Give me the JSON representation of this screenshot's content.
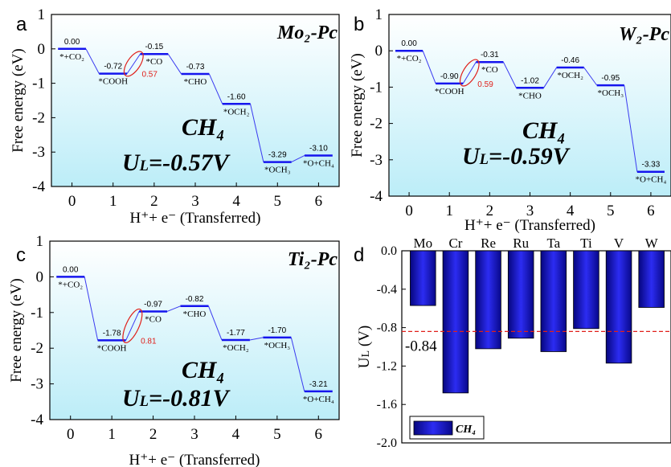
{
  "chart_data": [
    {
      "panel": "a",
      "type": "line",
      "title": "Mo₂-Pc",
      "product": "CH₄",
      "ul_label": "U",
      "ul_sub": "L",
      "ul_value": "=-0.57V",
      "xlabel": "H⁺+ e⁻ (Transferred)",
      "ylabel": "Free energy (eV)",
      "xticks": [
        "0",
        "1",
        "2",
        "3",
        "4",
        "5",
        "6"
      ],
      "yticks": [
        "1",
        "0",
        "-1",
        "-2",
        "-3",
        "-4"
      ],
      "xlim": [
        -0.5,
        6.5
      ],
      "ylim": [
        -4,
        1
      ],
      "steps": [
        {
          "x": 0,
          "y": 0.0,
          "value": "0.00",
          "species": "*+CO₂",
          "valuePos": "above",
          "spPos": "below"
        },
        {
          "x": 1,
          "y": -0.72,
          "value": "-0.72",
          "species": "*COOH",
          "valuePos": "above",
          "spPos": "below"
        },
        {
          "x": 2,
          "y": -0.15,
          "value": "-0.15",
          "species": "*CO",
          "valuePos": "above",
          "spPos": "below"
        },
        {
          "x": 3,
          "y": -0.73,
          "value": "-0.73",
          "species": "*CHO",
          "valuePos": "above",
          "spPos": "below"
        },
        {
          "x": 4,
          "y": -1.6,
          "value": "-1.60",
          "species": "*OCH₂",
          "valuePos": "above",
          "spPos": "below"
        },
        {
          "x": 5,
          "y": -3.29,
          "value": "-3.29",
          "species": "*OCH₃",
          "valuePos": "above",
          "spPos": "below"
        },
        {
          "x": 6,
          "y": -3.1,
          "value": "-3.10",
          "species": "*O+CH₄",
          "valuePos": "above",
          "spPos": "below"
        }
      ],
      "limiting": {
        "from": 1,
        "to": 2,
        "label": "0.57"
      }
    },
    {
      "panel": "b",
      "type": "line",
      "title": "W₂-Pc",
      "product": "CH₄",
      "ul_label": "U",
      "ul_sub": "L",
      "ul_value": "=-0.59V",
      "xlabel": "H⁺+ e⁻ (Transferred)",
      "ylabel": "Free energy (eV)",
      "xticks": [
        "0",
        "1",
        "2",
        "3",
        "4",
        "5",
        "6"
      ],
      "yticks": [
        "1",
        "0",
        "-1",
        "-2",
        "-3",
        "-4"
      ],
      "xlim": [
        -0.5,
        6.5
      ],
      "ylim": [
        -4,
        1
      ],
      "steps": [
        {
          "x": 0,
          "y": 0.0,
          "value": "0.00",
          "species": "*+CO₂",
          "valuePos": "above",
          "spPos": "below"
        },
        {
          "x": 1,
          "y": -0.9,
          "value": "-0.90",
          "species": "*COOH",
          "valuePos": "above",
          "spPos": "below"
        },
        {
          "x": 2,
          "y": -0.31,
          "value": "-0.31",
          "species": "*CO",
          "valuePos": "above",
          "spPos": "below"
        },
        {
          "x": 3,
          "y": -1.02,
          "value": "-1.02",
          "species": "*CHO",
          "valuePos": "above",
          "spPos": "below"
        },
        {
          "x": 4,
          "y": -0.46,
          "value": "-0.46",
          "species": "*OCH₂",
          "valuePos": "above",
          "spPos": "below"
        },
        {
          "x": 5,
          "y": -0.95,
          "value": "-0.95",
          "species": "*OCH₃",
          "valuePos": "above",
          "spPos": "below"
        },
        {
          "x": 6,
          "y": -3.33,
          "value": "-3.33",
          "species": "*O+CH₄",
          "valuePos": "above",
          "spPos": "below"
        }
      ],
      "limiting": {
        "from": 1,
        "to": 2,
        "label": "0.59"
      }
    },
    {
      "panel": "c",
      "type": "line",
      "title": "Ti₂-Pc",
      "product": "CH₄",
      "ul_label": "U",
      "ul_sub": "L",
      "ul_value": "=-0.81V",
      "xlabel": "H⁺+ e⁻ (Transferred)",
      "ylabel": "Free energy (eV)",
      "xticks": [
        "0",
        "1",
        "2",
        "3",
        "4",
        "5",
        "6"
      ],
      "yticks": [
        "1",
        "0",
        "-1",
        "-2",
        "-3",
        "-4"
      ],
      "xlim": [
        -0.5,
        6.5
      ],
      "ylim": [
        -4,
        1
      ],
      "steps": [
        {
          "x": 0,
          "y": 0.0,
          "value": "0.00",
          "species": "*+CO₂",
          "valuePos": "above",
          "spPos": "below"
        },
        {
          "x": 1,
          "y": -1.78,
          "value": "-1.78",
          "species": "*COOH",
          "valuePos": "above",
          "spPos": "below"
        },
        {
          "x": 2,
          "y": -0.97,
          "value": "-0.97",
          "species": "*CO",
          "valuePos": "above",
          "spPos": "below"
        },
        {
          "x": 3,
          "y": -0.82,
          "value": "-0.82",
          "species": "*CHO",
          "valuePos": "above",
          "spPos": "below"
        },
        {
          "x": 4,
          "y": -1.77,
          "value": "-1.77",
          "species": "*OCH₂",
          "valuePos": "above",
          "spPos": "below"
        },
        {
          "x": 5,
          "y": -1.7,
          "value": "-1.70",
          "species": "*OCH₃",
          "valuePos": "above",
          "spPos": "below"
        },
        {
          "x": 6,
          "y": -3.21,
          "value": "-3.21",
          "species": "*O+CH₄",
          "valuePos": "above",
          "spPos": "below"
        }
      ],
      "limiting": {
        "from": 1,
        "to": 2,
        "label": "0.81"
      }
    },
    {
      "panel": "d",
      "type": "bar",
      "categories": [
        "Mo",
        "Cr",
        "Re",
        "Ru",
        "Ta",
        "Ti",
        "V",
        "W"
      ],
      "values": [
        -0.57,
        -1.48,
        -1.02,
        -0.91,
        -1.05,
        -0.81,
        -1.17,
        -0.59
      ],
      "ylabel": "U",
      "ylabel_sub": "L",
      "ylabel_unit": " (V)",
      "ylim": [
        -2.0,
        0.0
      ],
      "yticks": [
        "0.0",
        "-0.4",
        "-0.8",
        "-1.2",
        "-1.6",
        "-2.0"
      ],
      "reference_line": {
        "value": -0.84,
        "label": "-0.84"
      },
      "legend": {
        "label": "CH₄",
        "position": "bottom-left"
      }
    }
  ],
  "colors": {
    "level": "#1515ee",
    "connector": "#3a3af0",
    "limiting": "#e0201a",
    "bar_dark": "#0a0a9a",
    "bar_light": "#3a3cff",
    "bg_top": "#ffffff",
    "bg_bottom": "#bfeef8",
    "refline": "#e0201a"
  }
}
